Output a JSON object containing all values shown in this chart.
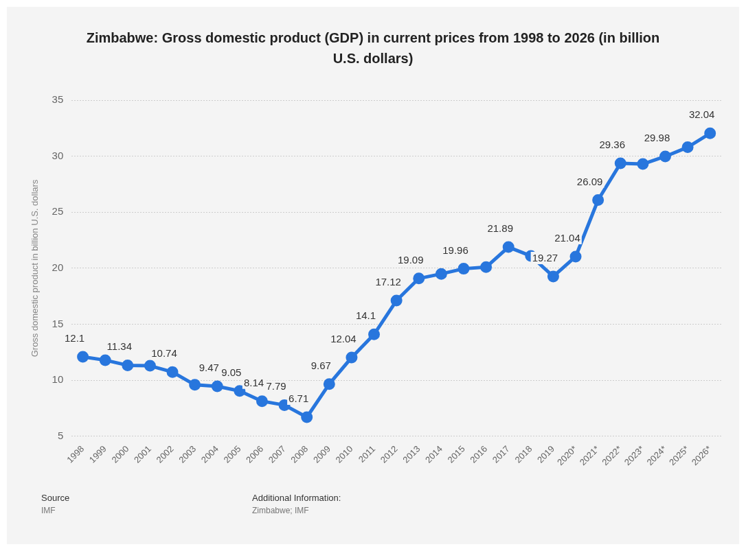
{
  "chart_data": {
    "type": "line",
    "title": "Zimbabwe: Gross domestic product (GDP) in current prices from 1998 to 2026 (in billion U.S. dollars)",
    "ylabel": "Gross domestic product in billion U.S. dollars",
    "categories": [
      "1998",
      "1999",
      "2000",
      "2001",
      "2002",
      "2003",
      "2004",
      "2005",
      "2006",
      "2007",
      "2008",
      "2009",
      "2010",
      "2011",
      "2012",
      "2013",
      "2014",
      "2015",
      "2016",
      "2017",
      "2018",
      "2019",
      "2020*",
      "2021*",
      "2022*",
      "2023*",
      "2024*",
      "2025*",
      "2026*"
    ],
    "series": [
      {
        "color": "#2876dd",
        "values": [
          12.1,
          11.8,
          11.34,
          11.3,
          10.74,
          9.6,
          9.47,
          9.05,
          8.14,
          7.79,
          6.71,
          9.67,
          12.04,
          14.1,
          17.12,
          19.09,
          19.5,
          19.96,
          20.1,
          21.89,
          21.1,
          19.27,
          21.04,
          26.09,
          29.36,
          29.3,
          29.98,
          30.8,
          32.04
        ],
        "value_labels": [
          "12.1",
          null,
          "11.34",
          null,
          "10.74",
          null,
          "9.47",
          "9.05",
          "8.14",
          "7.79",
          "6.71",
          "9.67",
          "12.04",
          "14.1",
          "17.12",
          "19.09",
          null,
          "19.96",
          null,
          "21.89",
          null,
          "19.27",
          "21.04",
          "26.09",
          "29.36",
          null,
          "29.98",
          null,
          "32.04"
        ]
      }
    ],
    "ylim": [
      5,
      35
    ],
    "yticks": [
      5,
      10,
      15,
      20,
      25,
      30,
      35
    ],
    "grid": "y",
    "legend": false,
    "marker": "circle",
    "line_style": "solid",
    "annotations": [
      "Source",
      "IMF",
      "Additional Information:",
      "Zimbabwe; IMF"
    ]
  }
}
